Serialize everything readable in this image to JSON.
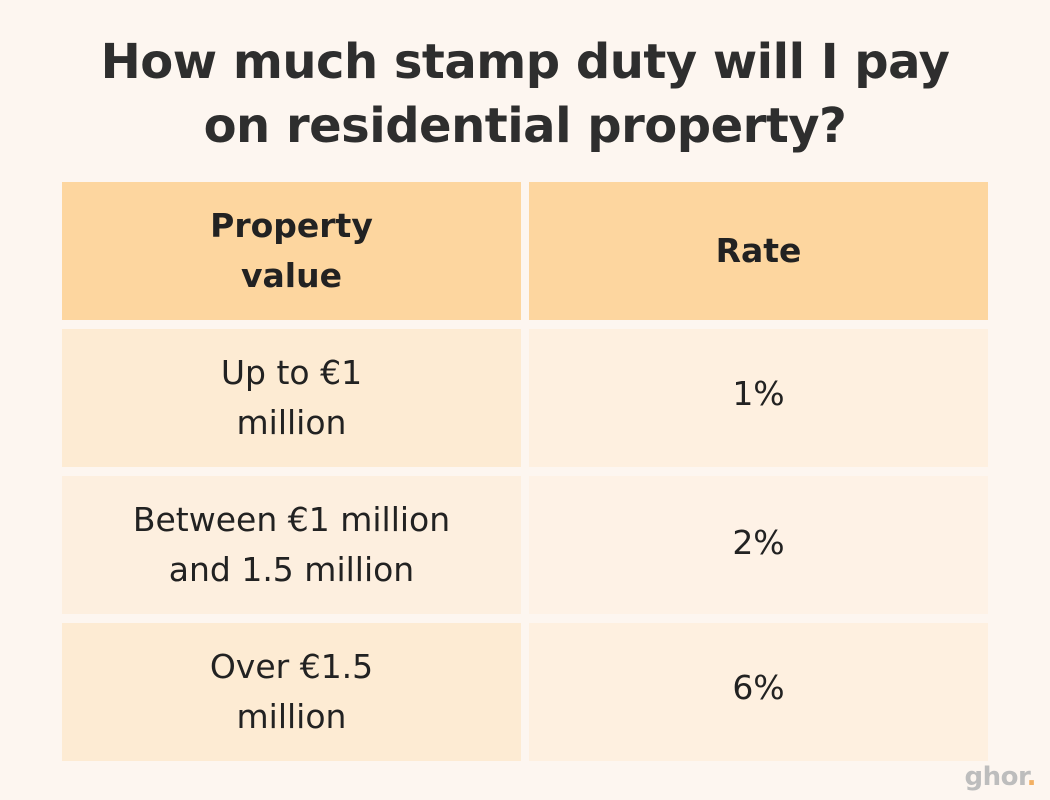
{
  "title": {
    "line1": "How much stamp duty will I pay",
    "line2": "on residential property?"
  },
  "table": {
    "headers": {
      "property_value": [
        "Property",
        "value"
      ],
      "rate": "Rate"
    },
    "rows": [
      {
        "property_value": [
          "Up to €1",
          "million"
        ],
        "rate": "1%"
      },
      {
        "property_value": [
          "Between €1 million",
          "and 1.5 million"
        ],
        "rate": "2%"
      },
      {
        "property_value": [
          "Over €1.5",
          "million"
        ],
        "rate": "6%"
      }
    ]
  },
  "logo": {
    "text": "ghor",
    "dot": "."
  },
  "colors": {
    "background": "#fdf6f0",
    "header": "#fdd69f",
    "row": "#fdebd3"
  }
}
